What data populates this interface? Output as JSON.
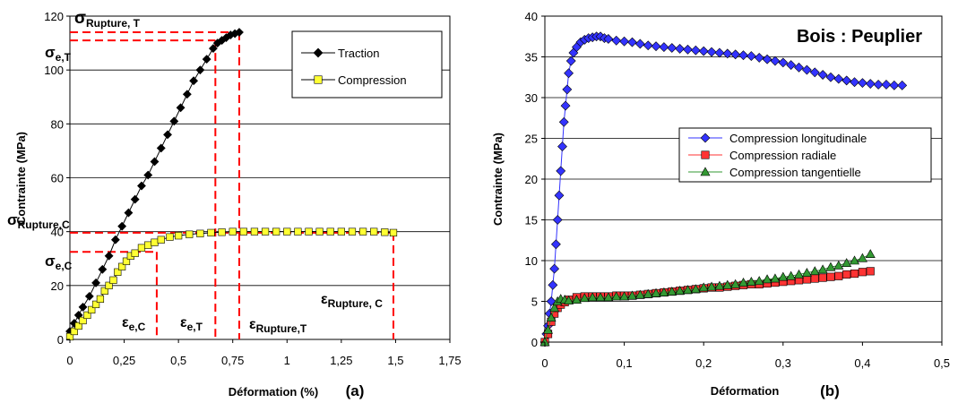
{
  "chart_data": [
    {
      "type": "scatter",
      "panel_label": "(a)",
      "title": "",
      "xlabel": "Déformation (%)",
      "ylabel": "Contrainte (MPa)",
      "xlim": [
        0,
        1.75
      ],
      "ylim": [
        0,
        120
      ],
      "xticks": [
        "0",
        "0,25",
        "0,5",
        "0,75",
        "1",
        "1,25",
        "1,5",
        "1,75"
      ],
      "yticks": [
        "0",
        "20",
        "40",
        "60",
        "80",
        "100",
        "120"
      ],
      "grid": "horizontal",
      "legend_position": "top-right",
      "series": [
        {
          "name": "Traction",
          "color": "#000000",
          "marker": "diamond",
          "x": [
            0.0,
            0.02,
            0.04,
            0.06,
            0.09,
            0.12,
            0.15,
            0.18,
            0.21,
            0.24,
            0.27,
            0.3,
            0.33,
            0.36,
            0.39,
            0.42,
            0.45,
            0.48,
            0.51,
            0.54,
            0.57,
            0.6,
            0.63,
            0.66,
            0.68,
            0.7,
            0.72,
            0.74,
            0.76,
            0.78
          ],
          "y": [
            3,
            6,
            9,
            12,
            16,
            21,
            26,
            31,
            37,
            42,
            47,
            52,
            57,
            61,
            66,
            71,
            76,
            81,
            86,
            91,
            96,
            100,
            104,
            108,
            110,
            111,
            112,
            113,
            113.5,
            114
          ]
        },
        {
          "name": "Compression",
          "color": "#ffff33",
          "marker": "square",
          "x": [
            0.0,
            0.02,
            0.04,
            0.06,
            0.08,
            0.1,
            0.12,
            0.14,
            0.16,
            0.18,
            0.2,
            0.22,
            0.24,
            0.26,
            0.28,
            0.3,
            0.33,
            0.36,
            0.39,
            0.42,
            0.46,
            0.5,
            0.55,
            0.6,
            0.65,
            0.7,
            0.75,
            0.8,
            0.85,
            0.9,
            0.95,
            1.0,
            1.05,
            1.1,
            1.15,
            1.2,
            1.25,
            1.3,
            1.35,
            1.4,
            1.45,
            1.49
          ],
          "y": [
            1,
            3,
            5,
            7,
            9,
            11,
            13,
            15,
            18,
            20,
            22,
            25,
            27,
            29,
            31,
            32,
            34,
            35,
            36,
            37,
            38,
            38.5,
            39,
            39.3,
            39.6,
            39.8,
            40,
            40,
            40,
            40,
            40,
            40,
            40,
            40,
            40,
            40,
            40,
            40,
            40,
            40,
            39.8,
            39.6
          ]
        }
      ],
      "reference_lines": {
        "sigma_rupture_T": 114,
        "sigma_e_T": 111,
        "sigma_rupture_C": 39.6,
        "sigma_e_C": 32.5,
        "eps_e_C": 0.4,
        "eps_e_T": 0.67,
        "eps_rupture_T": 0.78,
        "eps_rupture_C": 1.49
      },
      "annotations": {
        "sigma_rupture_T": {
          "main": "σ",
          "sub": "Rupture, T"
        },
        "sigma_e_T": {
          "main": "σ",
          "sub": "e,T"
        },
        "sigma_rupture_C": {
          "main": "σ",
          "sub": "Rupture,C"
        },
        "sigma_e_C": {
          "main": "σ",
          "sub": "e,C"
        },
        "eps_e_C": {
          "main": "ε",
          "sub": "e,C"
        },
        "eps_e_T": {
          "main": "ε",
          "sub": "e,T"
        },
        "eps_rupture_T": {
          "main": "ε",
          "sub": "Rupture,T"
        },
        "eps_rupture_C": {
          "main": "ε",
          "sub": "Rupture, C"
        }
      }
    },
    {
      "type": "scatter",
      "panel_label": "(b)",
      "title": "Bois : Peuplier",
      "xlabel": "Déformation",
      "ylabel": "Contrainte (MPa)",
      "xlim": [
        0,
        0.5
      ],
      "ylim": [
        0,
        40
      ],
      "xticks": [
        "0",
        "0,1",
        "0,2",
        "0,3",
        "0,4",
        "0,5"
      ],
      "yticks": [
        "0",
        "5",
        "10",
        "15",
        "20",
        "25",
        "30",
        "35",
        "40"
      ],
      "grid": "horizontal",
      "legend_position": "center-right",
      "series": [
        {
          "name": "Compression longitudinale",
          "color": "#3333ff",
          "marker": "diamond",
          "x": [
            0.0,
            0.002,
            0.004,
            0.006,
            0.008,
            0.01,
            0.012,
            0.014,
            0.016,
            0.018,
            0.02,
            0.022,
            0.024,
            0.026,
            0.028,
            0.03,
            0.033,
            0.036,
            0.04,
            0.045,
            0.05,
            0.055,
            0.06,
            0.065,
            0.07,
            0.075,
            0.08,
            0.09,
            0.1,
            0.11,
            0.12,
            0.13,
            0.14,
            0.15,
            0.16,
            0.17,
            0.18,
            0.19,
            0.2,
            0.21,
            0.22,
            0.23,
            0.24,
            0.25,
            0.26,
            0.27,
            0.28,
            0.29,
            0.3,
            0.31,
            0.32,
            0.33,
            0.34,
            0.35,
            0.36,
            0.37,
            0.38,
            0.39,
            0.4,
            0.41,
            0.42,
            0.43,
            0.44,
            0.45
          ],
          "y": [
            0,
            1,
            2,
            3.5,
            5,
            7,
            9,
            12,
            15,
            18,
            21,
            24,
            27,
            29,
            31,
            33,
            34.5,
            35.5,
            36.2,
            36.8,
            37.1,
            37.3,
            37.4,
            37.5,
            37.5,
            37.3,
            37.2,
            37,
            36.9,
            36.8,
            36.6,
            36.4,
            36.3,
            36.2,
            36.1,
            36,
            35.9,
            35.8,
            35.7,
            35.6,
            35.5,
            35.4,
            35.3,
            35.2,
            35.1,
            34.9,
            34.7,
            34.5,
            34.3,
            34,
            33.7,
            33.4,
            33.1,
            32.8,
            32.5,
            32.3,
            32.1,
            31.9,
            31.8,
            31.7,
            31.6,
            31.6,
            31.5,
            31.5
          ]
        },
        {
          "name": "Compression radiale",
          "color": "#ff3333",
          "marker": "square",
          "x": [
            0.0,
            0.004,
            0.008,
            0.012,
            0.016,
            0.02,
            0.025,
            0.03,
            0.04,
            0.05,
            0.06,
            0.07,
            0.08,
            0.09,
            0.1,
            0.11,
            0.12,
            0.13,
            0.14,
            0.15,
            0.16,
            0.17,
            0.18,
            0.19,
            0.2,
            0.21,
            0.22,
            0.23,
            0.24,
            0.25,
            0.26,
            0.27,
            0.28,
            0.29,
            0.3,
            0.31,
            0.32,
            0.33,
            0.34,
            0.35,
            0.36,
            0.37,
            0.38,
            0.39,
            0.4,
            0.41
          ],
          "y": [
            0,
            1,
            2.5,
            3.5,
            4.2,
            4.6,
            4.9,
            5.2,
            5.5,
            5.6,
            5.6,
            5.6,
            5.6,
            5.7,
            5.7,
            5.7,
            5.8,
            5.9,
            6,
            6.1,
            6.2,
            6.3,
            6.4,
            6.5,
            6.6,
            6.7,
            6.7,
            6.8,
            6.9,
            7,
            7.1,
            7.1,
            7.2,
            7.3,
            7.4,
            7.5,
            7.6,
            7.7,
            7.8,
            7.9,
            8,
            8.1,
            8.3,
            8.4,
            8.6,
            8.7
          ]
        },
        {
          "name": "Compression tangentielle",
          "color": "#339933",
          "marker": "triangle",
          "x": [
            0.0,
            0.004,
            0.008,
            0.012,
            0.016,
            0.02,
            0.025,
            0.03,
            0.04,
            0.05,
            0.06,
            0.07,
            0.08,
            0.09,
            0.1,
            0.11,
            0.12,
            0.13,
            0.14,
            0.15,
            0.16,
            0.17,
            0.18,
            0.19,
            0.2,
            0.21,
            0.22,
            0.23,
            0.24,
            0.25,
            0.26,
            0.27,
            0.28,
            0.29,
            0.3,
            0.31,
            0.32,
            0.33,
            0.34,
            0.35,
            0.36,
            0.37,
            0.38,
            0.39,
            0.4,
            0.41
          ],
          "y": [
            0,
            1.5,
            3,
            4.2,
            5,
            5.3,
            5.2,
            5.1,
            5.2,
            5.4,
            5.5,
            5.5,
            5.5,
            5.6,
            5.6,
            5.7,
            5.8,
            5.9,
            6,
            6.1,
            6.2,
            6.3,
            6.4,
            6.5,
            6.7,
            6.8,
            6.9,
            7,
            7.1,
            7.3,
            7.4,
            7.5,
            7.7,
            7.8,
            8,
            8.1,
            8.3,
            8.5,
            8.7,
            8.9,
            9.2,
            9.4,
            9.7,
            10,
            10.3,
            10.8
          ]
        }
      ]
    }
  ]
}
